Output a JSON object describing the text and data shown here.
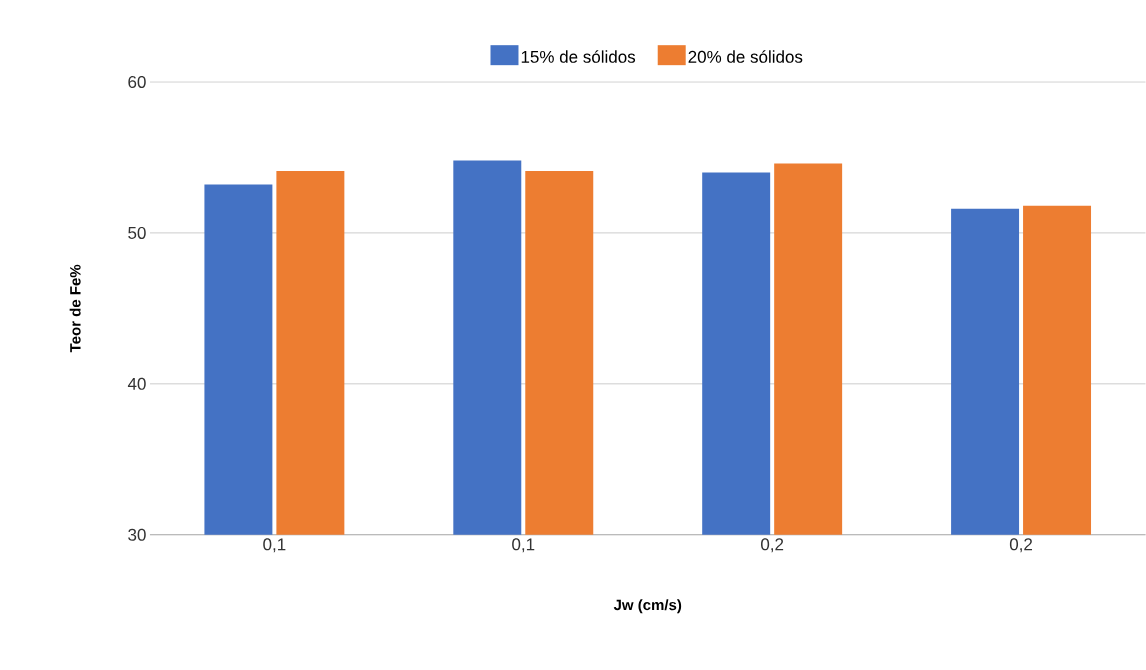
{
  "chart_data": {
    "type": "bar",
    "xlabel": "Jw (cm/s)",
    "ylabel": "Teor de Fe%",
    "categories": [
      "0,1",
      "0,1",
      "0,2",
      "0,2"
    ],
    "series": [
      {
        "name": "15% de sólidos",
        "color": "#4472c4",
        "values": [
          53.2,
          54.8,
          54.0,
          51.6
        ]
      },
      {
        "name": "20% de sólidos",
        "color": "#ed7d31",
        "values": [
          54.1,
          54.1,
          54.6,
          51.8
        ]
      }
    ],
    "ylim": [
      30,
      60
    ],
    "yticks": [
      30,
      40,
      50,
      60
    ],
    "grid": "y",
    "legend": "top"
  }
}
